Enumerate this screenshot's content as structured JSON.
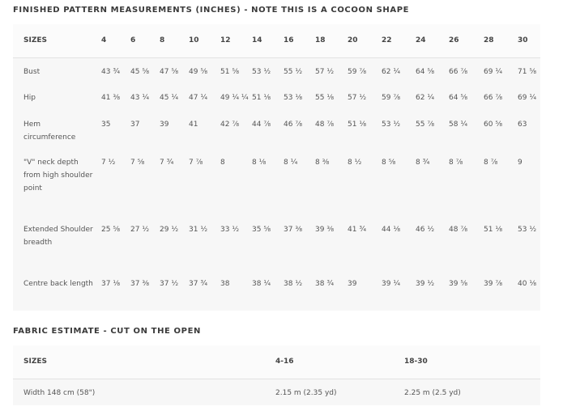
{
  "measurements": {
    "title": "FINISHED PATTERN MEASUREMENTS (INCHES) - NOTE THIS IS A COCOON SHAPE",
    "header": [
      "SIZES",
      "4",
      "6",
      "8",
      "10",
      "12",
      "14",
      "16",
      "18",
      "20",
      "22",
      "24",
      "26",
      "28",
      "30"
    ],
    "rows": [
      [
        "Bust",
        "43 ¾",
        "45 ⅝",
        "47 ⅝",
        "49 ⅝",
        "51 ⅝",
        "53 ½",
        "55 ½",
        "57 ½",
        "59 ⅞",
        "62 ¼",
        "64 ⅝",
        "66 ⅞",
        "69 ¼",
        "71 ⅝"
      ],
      [
        "Hip",
        "41 ⅜",
        "43 ¼",
        "45 ¼",
        "47 ¼",
        "49 ¼ ¼",
        "51 ⅛",
        "53 ⅛",
        "55 ⅛",
        "57 ½",
        "59 ⅞",
        "62 ¼",
        "64 ⅝",
        "66 ⅞",
        "69 ¼"
      ],
      [
        "Hem circumference",
        "35",
        "37",
        "39",
        "41",
        "42 ⅞",
        "44 ⅞",
        "46 ⅞",
        "48 ⅞",
        "51 ⅛",
        "53 ½",
        "55 ⅞",
        "58 ¼",
        "60 ⅝",
        "63"
      ],
      [
        "\"V\" neck depth from high shoulder point",
        "7 ½",
        "7 ⅝",
        "7 ¾",
        "7 ⅞",
        "8",
        "8 ⅛",
        "8 ¼",
        "8 ⅜",
        "8 ½",
        "8 ⅝",
        "8 ¾",
        "8 ⅞",
        "8 ⅞",
        "9"
      ],
      [
        "Extended Shoulder breadth",
        "25 ⅝",
        "27 ½",
        "29 ½",
        "31 ½",
        "33 ½",
        "35 ⅝",
        "37 ⅜",
        "39 ⅜",
        "41 ¾",
        "44 ⅛",
        "46 ½",
        "48 ⅞",
        "51 ⅛",
        "53 ½"
      ],
      [
        "Centre back length",
        "37 ⅛",
        "37 ⅜",
        "37 ½",
        "37 ¾",
        "38",
        "38 ¼",
        "38 ½",
        "38 ¾",
        "39",
        "39 ¼",
        "39 ½",
        "39 ⅝",
        "39 ⅞",
        "40 ⅛"
      ]
    ]
  },
  "fabric": {
    "title": "FABRIC ESTIMATE - CUT ON THE OPEN",
    "header": [
      "SIZES",
      "4-16",
      "18-30"
    ],
    "rows": [
      [
        "Width 148 cm (58\")",
        "2.15 m (2.35 yd)",
        "2.25 m (2.5 yd)"
      ]
    ]
  }
}
